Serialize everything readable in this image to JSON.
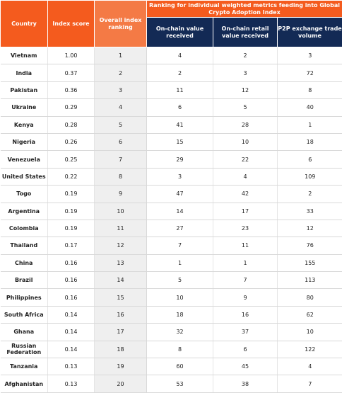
{
  "chart_data": {
    "type": "table",
    "columns": {
      "country": "Country",
      "index_score": "Index score",
      "overall_rank": "Overall index ranking",
      "group": "Ranking for individual weighted metrics feeding into Global Crypto Adoption Index",
      "onchain_value": "On-chain value received",
      "onchain_retail": "On-chain retail value received",
      "p2p": "P2P exchange trade volume"
    },
    "rows": [
      {
        "country": "Vietnam",
        "score": "1.00",
        "rank": "1",
        "onchain": "4",
        "retail": "2",
        "p2p": "3"
      },
      {
        "country": "India",
        "score": "0.37",
        "rank": "2",
        "onchain": "2",
        "retail": "3",
        "p2p": "72"
      },
      {
        "country": "Pakistan",
        "score": "0.36",
        "rank": "3",
        "onchain": "11",
        "retail": "12",
        "p2p": "8"
      },
      {
        "country": "Ukraine",
        "score": "0.29",
        "rank": "4",
        "onchain": "6",
        "retail": "5",
        "p2p": "40"
      },
      {
        "country": "Kenya",
        "score": "0.28",
        "rank": "5",
        "onchain": "41",
        "retail": "28",
        "p2p": "1"
      },
      {
        "country": "Nigeria",
        "score": "0.26",
        "rank": "6",
        "onchain": "15",
        "retail": "10",
        "p2p": "18"
      },
      {
        "country": "Venezuela",
        "score": "0.25",
        "rank": "7",
        "onchain": "29",
        "retail": "22",
        "p2p": "6"
      },
      {
        "country": "United States",
        "score": "0.22",
        "rank": "8",
        "onchain": "3",
        "retail": "4",
        "p2p": "109"
      },
      {
        "country": "Togo",
        "score": "0.19",
        "rank": "9",
        "onchain": "47",
        "retail": "42",
        "p2p": "2"
      },
      {
        "country": "Argentina",
        "score": "0.19",
        "rank": "10",
        "onchain": "14",
        "retail": "17",
        "p2p": "33"
      },
      {
        "country": "Colombia",
        "score": "0.19",
        "rank": "11",
        "onchain": "27",
        "retail": "23",
        "p2p": "12"
      },
      {
        "country": "Thailand",
        "score": "0.17",
        "rank": "12",
        "onchain": "7",
        "retail": "11",
        "p2p": "76"
      },
      {
        "country": "China",
        "score": "0.16",
        "rank": "13",
        "onchain": "1",
        "retail": "1",
        "p2p": "155"
      },
      {
        "country": "Brazil",
        "score": "0.16",
        "rank": "14",
        "onchain": "5",
        "retail": "7",
        "p2p": "113"
      },
      {
        "country": "Philippines",
        "score": "0.16",
        "rank": "15",
        "onchain": "10",
        "retail": "9",
        "p2p": "80"
      },
      {
        "country": "South Africa",
        "score": "0.14",
        "rank": "16",
        "onchain": "18",
        "retail": "16",
        "p2p": "62"
      },
      {
        "country": "Ghana",
        "score": "0.14",
        "rank": "17",
        "onchain": "32",
        "retail": "37",
        "p2p": "10"
      },
      {
        "country": "Russian Federation",
        "score": "0.14",
        "rank": "18",
        "onchain": "8",
        "retail": "6",
        "p2p": "122"
      },
      {
        "country": "Tanzania",
        "score": "0.13",
        "rank": "19",
        "onchain": "60",
        "retail": "45",
        "p2p": "4"
      },
      {
        "country": "Afghanistan",
        "score": "0.13",
        "rank": "20",
        "onchain": "53",
        "retail": "38",
        "p2p": "7"
      }
    ],
    "colors": {
      "header_orange": "#f45b1e",
      "header_navy": "#132a55",
      "rank_column_bg": "#efefef"
    }
  }
}
